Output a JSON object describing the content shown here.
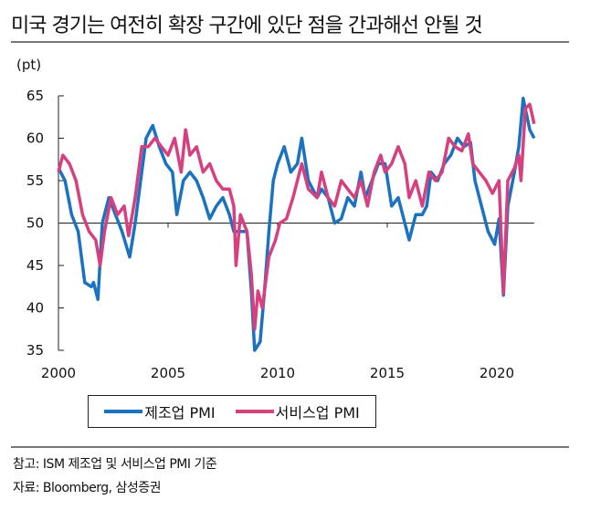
{
  "title": "미국 경기는 여전히 확장 구간에 있단 점을 간과해선 안될 것",
  "footer": {
    "note": "참고: ISM 제조업 및 서비스업 PMI 기준",
    "source": "자료: Bloomberg, 삼성증권"
  },
  "chart_data": {
    "type": "line",
    "title": "",
    "xlabel": "",
    "ylabel": "(pt)",
    "xlim": [
      2000,
      2021.7
    ],
    "ylim": [
      35,
      65
    ],
    "yticks": [
      35,
      40,
      45,
      50,
      55,
      60,
      65
    ],
    "xticks": [
      2000,
      2005,
      2010,
      2015,
      2020
    ],
    "reference_line": 50,
    "grid": false,
    "legend": "bottom",
    "series": [
      {
        "name": "제조업 PMI",
        "color": "#1a72c0",
        "points": [
          [
            2000.0,
            56.5
          ],
          [
            2000.3,
            55
          ],
          [
            2000.6,
            51
          ],
          [
            2000.9,
            49
          ],
          [
            2001.2,
            43
          ],
          [
            2001.5,
            42.5
          ],
          [
            2001.6,
            43
          ],
          [
            2001.8,
            41
          ],
          [
            2002.0,
            50
          ],
          [
            2002.3,
            53
          ],
          [
            2002.6,
            51
          ],
          [
            2002.9,
            49
          ],
          [
            2003.25,
            46
          ],
          [
            2003.5,
            50
          ],
          [
            2003.8,
            56
          ],
          [
            2004.0,
            60
          ],
          [
            2004.3,
            61.5
          ],
          [
            2004.6,
            59
          ],
          [
            2004.9,
            57
          ],
          [
            2005.2,
            56
          ],
          [
            2005.4,
            51
          ],
          [
            2005.7,
            55
          ],
          [
            2006.0,
            56
          ],
          [
            2006.3,
            55
          ],
          [
            2006.6,
            53
          ],
          [
            2006.9,
            50.5
          ],
          [
            2007.2,
            52
          ],
          [
            2007.5,
            53
          ],
          [
            2007.8,
            51
          ],
          [
            2008.0,
            49
          ],
          [
            2008.3,
            49
          ],
          [
            2008.6,
            49
          ],
          [
            2008.8,
            42
          ],
          [
            2008.95,
            35
          ],
          [
            2009.2,
            36
          ],
          [
            2009.4,
            42
          ],
          [
            2009.6,
            49
          ],
          [
            2009.8,
            55
          ],
          [
            2010.0,
            57
          ],
          [
            2010.3,
            59
          ],
          [
            2010.6,
            56
          ],
          [
            2010.9,
            57
          ],
          [
            2011.1,
            60
          ],
          [
            2011.4,
            55
          ],
          [
            2011.8,
            53
          ],
          [
            2012.0,
            54
          ],
          [
            2012.3,
            53
          ],
          [
            2012.6,
            50
          ],
          [
            2012.9,
            50.5
          ],
          [
            2013.2,
            53
          ],
          [
            2013.5,
            52
          ],
          [
            2013.8,
            56
          ],
          [
            2014.0,
            53
          ],
          [
            2014.3,
            55
          ],
          [
            2014.6,
            57
          ],
          [
            2014.9,
            57
          ],
          [
            2015.2,
            52
          ],
          [
            2015.5,
            53
          ],
          [
            2015.8,
            50
          ],
          [
            2016.0,
            48
          ],
          [
            2016.3,
            51
          ],
          [
            2016.6,
            51
          ],
          [
            2016.8,
            52
          ],
          [
            2017.0,
            56
          ],
          [
            2017.3,
            55
          ],
          [
            2017.6,
            57
          ],
          [
            2017.9,
            58
          ],
          [
            2018.2,
            60
          ],
          [
            2018.5,
            59
          ],
          [
            2018.8,
            59.5
          ],
          [
            2019.0,
            55
          ],
          [
            2019.3,
            52
          ],
          [
            2019.6,
            49
          ],
          [
            2019.9,
            47.5
          ],
          [
            2020.1,
            50.5
          ],
          [
            2020.3,
            41.5
          ],
          [
            2020.5,
            52
          ],
          [
            2020.8,
            56
          ],
          [
            2021.0,
            59
          ],
          [
            2021.2,
            64.7
          ],
          [
            2021.5,
            61
          ],
          [
            2021.7,
            60
          ]
        ]
      },
      {
        "name": "서비스업 PMI",
        "color": "#d6407f",
        "points": [
          [
            2000.0,
            56
          ],
          [
            2000.2,
            58
          ],
          [
            2000.5,
            57
          ],
          [
            2000.8,
            55
          ],
          [
            2001.1,
            51
          ],
          [
            2001.4,
            49
          ],
          [
            2001.7,
            48
          ],
          [
            2001.9,
            45
          ],
          [
            2002.1,
            49
          ],
          [
            2002.4,
            53
          ],
          [
            2002.7,
            51
          ],
          [
            2003.0,
            52
          ],
          [
            2003.2,
            48.5
          ],
          [
            2003.5,
            53
          ],
          [
            2003.8,
            59
          ],
          [
            2004.1,
            59
          ],
          [
            2004.4,
            60
          ],
          [
            2004.7,
            59
          ],
          [
            2005.0,
            58
          ],
          [
            2005.3,
            60
          ],
          [
            2005.6,
            56
          ],
          [
            2005.8,
            61
          ],
          [
            2006.0,
            58
          ],
          [
            2006.3,
            59
          ],
          [
            2006.6,
            56
          ],
          [
            2006.9,
            57
          ],
          [
            2007.2,
            55
          ],
          [
            2007.5,
            54
          ],
          [
            2007.8,
            54
          ],
          [
            2008.0,
            52
          ],
          [
            2008.1,
            45
          ],
          [
            2008.3,
            51
          ],
          [
            2008.6,
            49
          ],
          [
            2008.8,
            44
          ],
          [
            2008.95,
            37.5
          ],
          [
            2009.1,
            42
          ],
          [
            2009.3,
            40
          ],
          [
            2009.6,
            46
          ],
          [
            2009.9,
            48
          ],
          [
            2010.1,
            50
          ],
          [
            2010.4,
            50.5
          ],
          [
            2010.7,
            53
          ],
          [
            2010.9,
            55
          ],
          [
            2011.1,
            57
          ],
          [
            2011.4,
            54
          ],
          [
            2011.8,
            53
          ],
          [
            2012.0,
            56
          ],
          [
            2012.3,
            53
          ],
          [
            2012.6,
            52
          ],
          [
            2012.9,
            55
          ],
          [
            2013.2,
            54
          ],
          [
            2013.5,
            53
          ],
          [
            2013.8,
            55
          ],
          [
            2014.1,
            52
          ],
          [
            2014.4,
            56
          ],
          [
            2014.7,
            58
          ],
          [
            2014.9,
            56
          ],
          [
            2015.2,
            57
          ],
          [
            2015.5,
            59
          ],
          [
            2015.8,
            57
          ],
          [
            2016.0,
            53
          ],
          [
            2016.3,
            55
          ],
          [
            2016.6,
            52
          ],
          [
            2016.9,
            56
          ],
          [
            2017.2,
            55
          ],
          [
            2017.5,
            56
          ],
          [
            2017.8,
            60
          ],
          [
            2018.1,
            59
          ],
          [
            2018.4,
            58.5
          ],
          [
            2018.7,
            60.5
          ],
          [
            2018.9,
            57
          ],
          [
            2019.2,
            56
          ],
          [
            2019.5,
            55
          ],
          [
            2019.8,
            53.5
          ],
          [
            2020.1,
            55
          ],
          [
            2020.3,
            41.7
          ],
          [
            2020.5,
            55
          ],
          [
            2020.8,
            56.5
          ],
          [
            2021.0,
            58
          ],
          [
            2021.1,
            55
          ],
          [
            2021.3,
            63.5
          ],
          [
            2021.5,
            64
          ],
          [
            2021.7,
            61.7
          ]
        ]
      }
    ]
  }
}
